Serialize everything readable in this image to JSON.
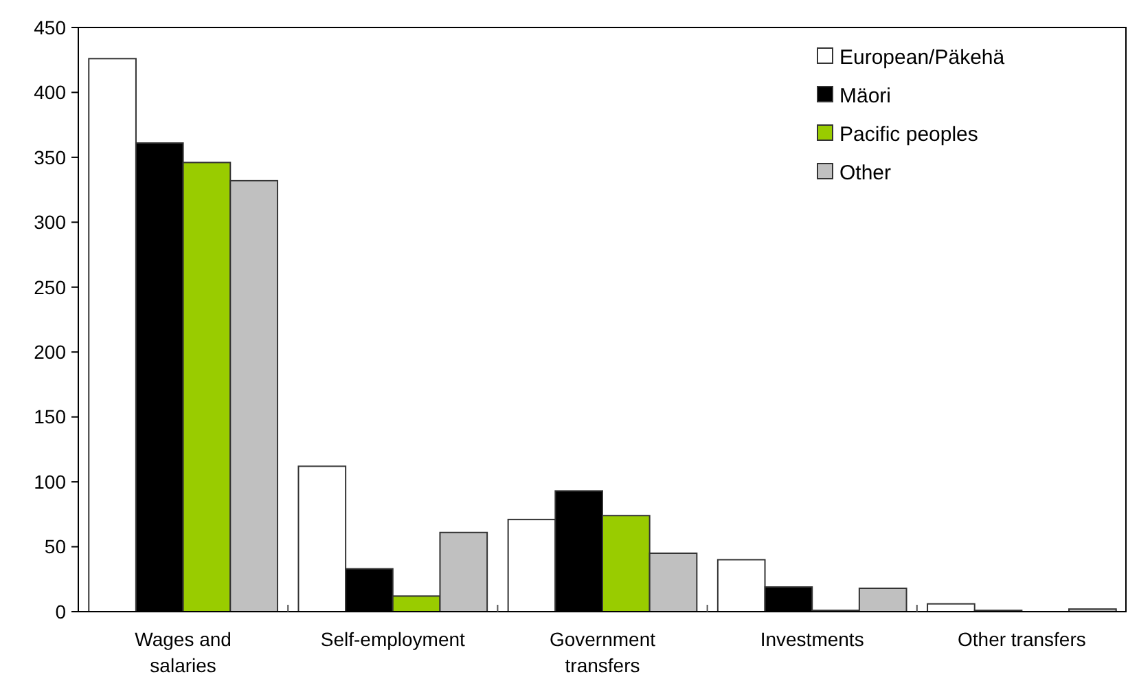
{
  "chart_data": {
    "type": "bar",
    "categories": [
      "Wages and salaries",
      "Self-employment",
      "Government transfers",
      "Investments",
      "Other transfers"
    ],
    "series": [
      {
        "name": "European/Päkehä",
        "color": "#ffffff",
        "values": [
          426,
          112,
          71,
          40,
          6
        ]
      },
      {
        "name": "Mäori",
        "color": "#000000",
        "values": [
          361,
          33,
          93,
          19,
          1
        ]
      },
      {
        "name": "Pacific peoples",
        "color": "#99cc00",
        "values": [
          346,
          12,
          74,
          1,
          0
        ]
      },
      {
        "name": "Other",
        "color": "#c0c0c0",
        "values": [
          332,
          61,
          45,
          18,
          2
        ]
      }
    ],
    "ylim": [
      0,
      450
    ],
    "yticks": [
      0,
      50,
      100,
      150,
      200,
      250,
      300,
      350,
      400,
      450
    ],
    "grid": false,
    "legend": "top right"
  }
}
